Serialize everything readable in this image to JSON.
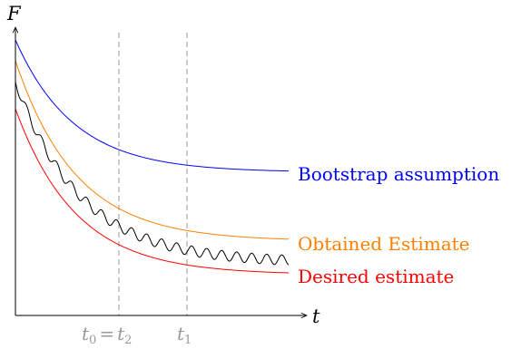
{
  "axes": {
    "y_label": "F",
    "x_label": "t"
  },
  "markers": {
    "t0_t2": {
      "left": "t",
      "left_sub": "0",
      "eq": "=",
      "right": "t",
      "right_sub": "2"
    },
    "t1": {
      "base": "t",
      "sub": "1"
    }
  },
  "curves": {
    "bootstrap": {
      "label": "Bootstrap assumption",
      "color": "#0000ff"
    },
    "obtained": {
      "label": "Obtained Estimate",
      "color": "#ff8000"
    },
    "desired": {
      "label": "Desired estimate",
      "color": "#ff0000"
    },
    "actual": {
      "color": "#000000"
    }
  },
  "colors": {
    "axis": "#000000",
    "dashed": "#999999",
    "marker_text": "#999999"
  }
}
